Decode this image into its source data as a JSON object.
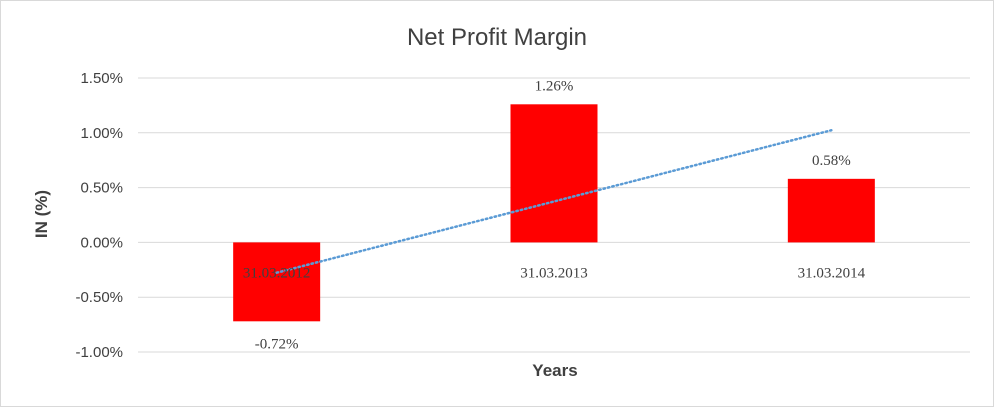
{
  "chart_data": {
    "type": "bar",
    "title": "Net Profit Margin",
    "xlabel": "Years",
    "ylabel": "IN (%)",
    "categories": [
      "31.03.2012",
      "31.03.2013",
      "31.03.2014"
    ],
    "values": [
      -0.72,
      1.26,
      0.58
    ],
    "data_labels": [
      "-0.72%",
      "1.26%",
      "0.58%"
    ],
    "ylim": [
      -1.0,
      1.5
    ],
    "yticks": [
      -1.0,
      -0.5,
      0.0,
      0.5,
      1.0,
      1.5
    ],
    "ytick_labels": [
      "-1.00%",
      "-0.50%",
      "0.00%",
      "0.50%",
      "1.00%",
      "1.50%"
    ],
    "grid": true,
    "trendline": {
      "type": "linear",
      "style": "dotted",
      "color": "#5b9bd5"
    },
    "bar_color": "#ff0000",
    "grid_color": "#d9d9d9"
  }
}
